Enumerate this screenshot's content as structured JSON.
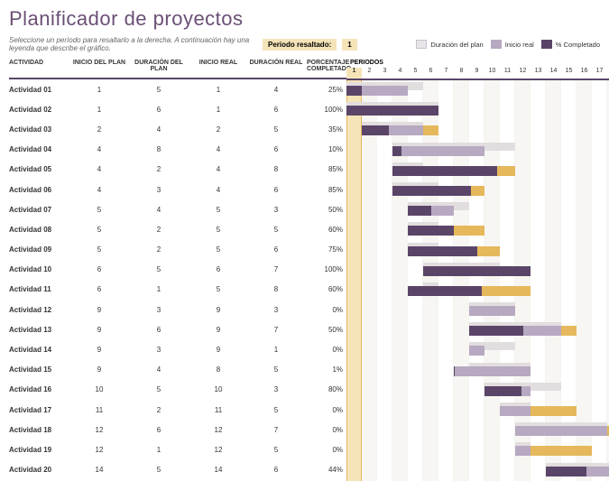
{
  "title": "Planificador de proyectos",
  "title_color": "#6b4f75",
  "subtitle": "Seleccione un período para resaltarlo a la derecha.  A continuación hay una leyenda que describe el gráfico.",
  "highlight": {
    "label": "Periodo resaltado:",
    "value": "1",
    "bg": "#f5e4b8"
  },
  "legend": [
    {
      "swatch_bg": "#e8e5e9",
      "swatch_border": "#c9c1cd",
      "text": "Duración del plan"
    },
    {
      "swatch_bg": "#b7a9c1",
      "text": "Inicio real"
    },
    {
      "swatch_bg": "#5a4568",
      "text": "% Completado"
    }
  ],
  "columns": {
    "activity": "ACTIVIDAD",
    "plan_start": "INICIO DEL PLAN",
    "plan_dur": "DURACIÓN DEL PLAN",
    "real_start": "INICIO REAL",
    "real_dur": "DURACIÓN REAL",
    "pct": "PORCENTAJE COMPLETADO",
    "periods": "PERIODOS"
  },
  "chart": {
    "periods": 18,
    "period_width": 17,
    "highlight_period": 1,
    "plan_color": "#e2ddde",
    "actual_color": "#b7a9c1",
    "actual_color_accent": "#e6b85c",
    "complete_color": "#5a4568",
    "row_border": "#5a4568"
  },
  "activities": [
    {
      "name": "Actividad 01",
      "plan_start": 1,
      "plan_dur": 5,
      "real_start": 1,
      "real_dur": 4,
      "pct": "25%",
      "pct_val": 0.25
    },
    {
      "name": "Actividad 02",
      "plan_start": 1,
      "plan_dur": 6,
      "real_start": 1,
      "real_dur": 6,
      "pct": "100%",
      "pct_val": 1.0
    },
    {
      "name": "Actividad 03",
      "plan_start": 2,
      "plan_dur": 4,
      "real_start": 2,
      "real_dur": 5,
      "pct": "35%",
      "pct_val": 0.35
    },
    {
      "name": "Actividad 04",
      "plan_start": 4,
      "plan_dur": 8,
      "real_start": 4,
      "real_dur": 6,
      "pct": "10%",
      "pct_val": 0.1
    },
    {
      "name": "Actividad 05",
      "plan_start": 4,
      "plan_dur": 2,
      "real_start": 4,
      "real_dur": 8,
      "pct": "85%",
      "pct_val": 0.85
    },
    {
      "name": "Actividad 06",
      "plan_start": 4,
      "plan_dur": 3,
      "real_start": 4,
      "real_dur": 6,
      "pct": "85%",
      "pct_val": 0.85
    },
    {
      "name": "Actividad 07",
      "plan_start": 5,
      "plan_dur": 4,
      "real_start": 5,
      "real_dur": 3,
      "pct": "50%",
      "pct_val": 0.5
    },
    {
      "name": "Actividad 08",
      "plan_start": 5,
      "plan_dur": 2,
      "real_start": 5,
      "real_dur": 5,
      "pct": "60%",
      "pct_val": 0.6
    },
    {
      "name": "Actividad 09",
      "plan_start": 5,
      "plan_dur": 2,
      "real_start": 5,
      "real_dur": 6,
      "pct": "75%",
      "pct_val": 0.75
    },
    {
      "name": "Actividad 10",
      "plan_start": 6,
      "plan_dur": 5,
      "real_start": 6,
      "real_dur": 7,
      "pct": "100%",
      "pct_val": 1.0
    },
    {
      "name": "Actividad 11",
      "plan_start": 6,
      "plan_dur": 1,
      "real_start": 5,
      "real_dur": 8,
      "pct": "60%",
      "pct_val": 0.6
    },
    {
      "name": "Actividad 12",
      "plan_start": 9,
      "plan_dur": 3,
      "real_start": 9,
      "real_dur": 3,
      "pct": "0%",
      "pct_val": 0.0
    },
    {
      "name": "Actividad 13",
      "plan_start": 9,
      "plan_dur": 6,
      "real_start": 9,
      "real_dur": 7,
      "pct": "50%",
      "pct_val": 0.5
    },
    {
      "name": "Actividad 14",
      "plan_start": 9,
      "plan_dur": 3,
      "real_start": 9,
      "real_dur": 1,
      "pct": "0%",
      "pct_val": 0.0
    },
    {
      "name": "Actividad 15",
      "plan_start": 9,
      "plan_dur": 4,
      "real_start": 8,
      "real_dur": 5,
      "pct": "1%",
      "pct_val": 0.01
    },
    {
      "name": "Actividad 16",
      "plan_start": 10,
      "plan_dur": 5,
      "real_start": 10,
      "real_dur": 3,
      "pct": "80%",
      "pct_val": 0.8
    },
    {
      "name": "Actividad 17",
      "plan_start": 11,
      "plan_dur": 2,
      "real_start": 11,
      "real_dur": 5,
      "pct": "0%",
      "pct_val": 0.0
    },
    {
      "name": "Actividad 18",
      "plan_start": 12,
      "plan_dur": 6,
      "real_start": 12,
      "real_dur": 7,
      "pct": "0%",
      "pct_val": 0.0
    },
    {
      "name": "Actividad 19",
      "plan_start": 12,
      "plan_dur": 1,
      "real_start": 12,
      "real_dur": 5,
      "pct": "0%",
      "pct_val": 0.0
    },
    {
      "name": "Actividad 20",
      "plan_start": 14,
      "plan_dur": 5,
      "real_start": 14,
      "real_dur": 6,
      "pct": "44%",
      "pct_val": 0.44
    }
  ]
}
